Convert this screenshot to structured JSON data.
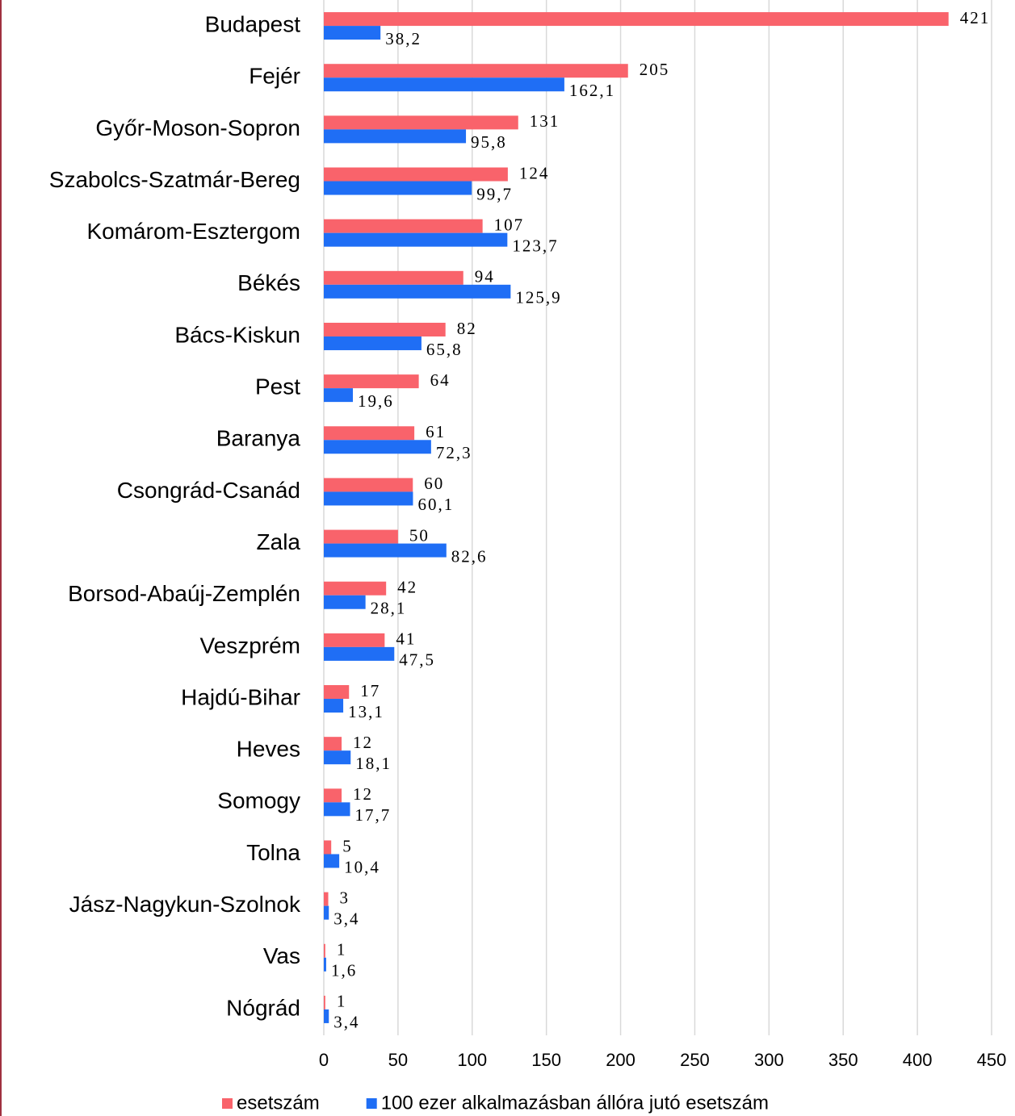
{
  "chart_data": {
    "type": "bar",
    "orientation": "horizontal",
    "categories": [
      "Budapest",
      "Fejér",
      "Győr-Moson-Sopron",
      "Szabolcs-Szatmár-Bereg",
      "Komárom-Esztergom",
      "Békés",
      "Bács-Kiskun",
      "Pest",
      "Baranya",
      "Csongrád-Csanád",
      "Zala",
      "Borsod-Abaúj-Zemplén",
      "Veszprém",
      "Hajdú-Bihar",
      "Heves",
      "Somogy",
      "Tolna",
      "Jász-Nagykun-Szolnok",
      "Vas",
      "Nógrád"
    ],
    "series": [
      {
        "name": "esetszám",
        "color": "#f9636b",
        "values": [
          421,
          205,
          131,
          124,
          107,
          94,
          82,
          64,
          61,
          60,
          50,
          42,
          41,
          17,
          12,
          12,
          5,
          3,
          1,
          1
        ]
      },
      {
        "name": "100 ezer alkalmazásban állóra jutó esetszám",
        "color": "#1f6ef5",
        "values": [
          38.2,
          162.1,
          95.8,
          99.7,
          123.7,
          125.9,
          65.8,
          19.6,
          72.3,
          60.1,
          82.6,
          28.1,
          47.5,
          13.1,
          18.1,
          17.7,
          10.4,
          3.4,
          1.6,
          3.4
        ],
        "value_labels": [
          "38,2",
          "162,1",
          "95,8",
          "99,7",
          "123,7",
          "125,9",
          "65,8",
          "19,6",
          "72,3",
          "60,1",
          "82,6",
          "28,1",
          "47,5",
          "13,1",
          "18,1",
          "17,7",
          "10,4",
          "3,4",
          "1,6",
          "3,4"
        ]
      }
    ],
    "xlim": [
      0,
      450
    ],
    "xticks": [
      0,
      50,
      100,
      150,
      200,
      250,
      300,
      350,
      400,
      450
    ],
    "grid": true,
    "legend": "bottom"
  }
}
